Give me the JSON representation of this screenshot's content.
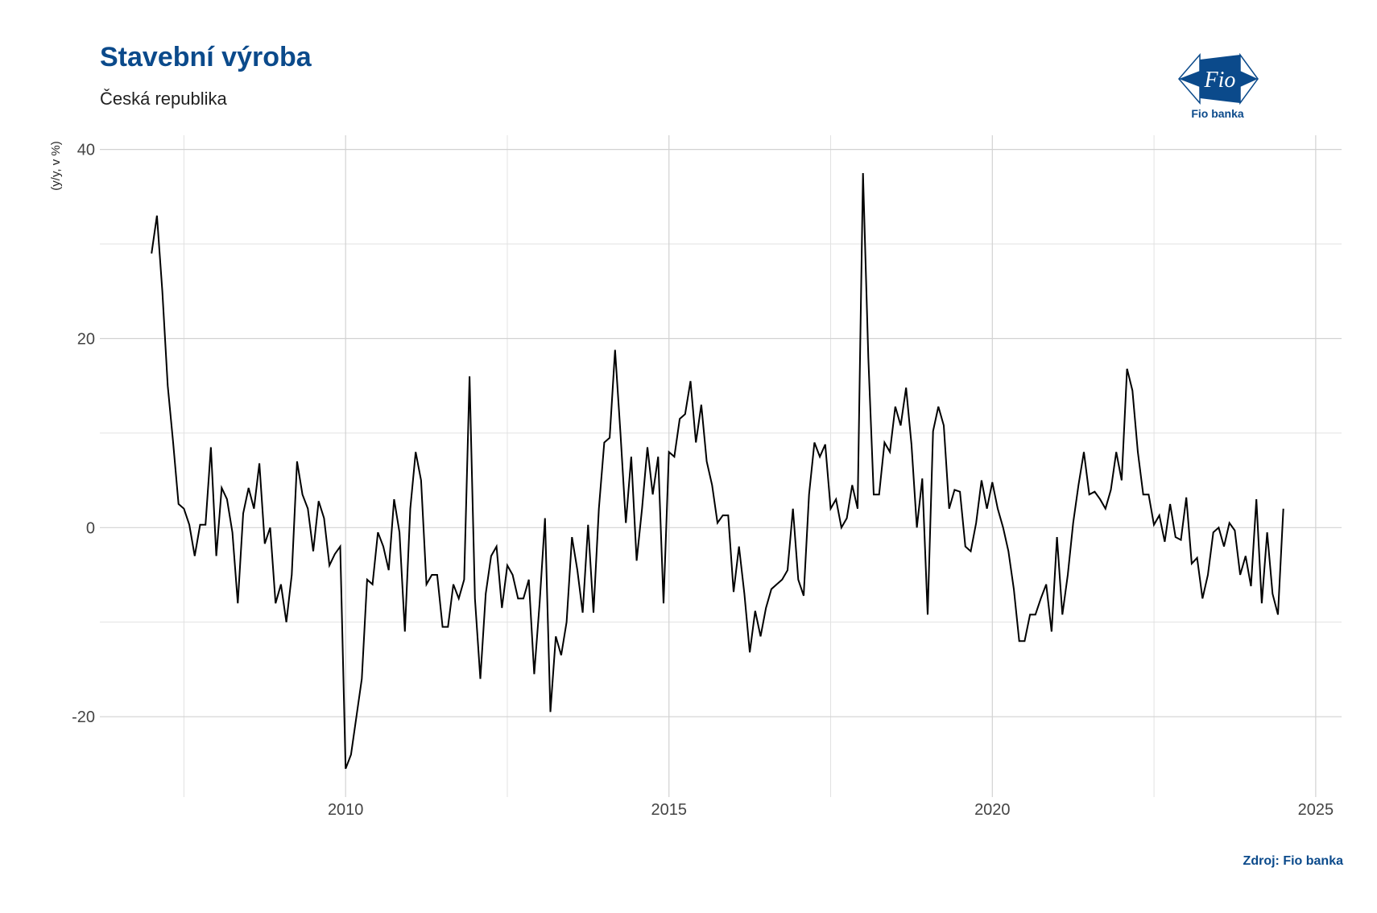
{
  "title": "Stavební výroba",
  "subtitle": "Česká republika",
  "source": "Zdroj: Fio banka",
  "logo": {
    "text": "Fio",
    "caption": "Fio banka",
    "color": "#0b4a8b"
  },
  "chart_data": {
    "type": "line",
    "title": "Stavební výroba",
    "subtitle": "Česká republika",
    "xlabel": "",
    "ylabel": "(y/y, v %)",
    "xlim": [
      2006.2,
      2025.4
    ],
    "ylim": [
      -28.5,
      41.5
    ],
    "x_ticks": [
      2010,
      2015,
      2020,
      2025
    ],
    "y_ticks": [
      -20,
      0,
      20,
      40
    ],
    "grid": true,
    "line_color": "#000000",
    "start": 2007.0,
    "step": 0.08333,
    "values": [
      29.0,
      33.0,
      25.0,
      15.0,
      9.0,
      2.5,
      2.0,
      0.3,
      -3.0,
      0.3,
      0.3,
      8.5,
      -3.0,
      4.2,
      3.0,
      -0.5,
      -8.0,
      1.5,
      4.2,
      2.0,
      6.8,
      -1.7,
      0.0,
      -8.0,
      -6.0,
      -10.0,
      -5.0,
      7.0,
      3.5,
      2.0,
      -2.5,
      2.8,
      1.0,
      -4.0,
      -2.8,
      -2.0,
      -25.5,
      -24.0,
      -20.0,
      -16.0,
      -5.5,
      -6.0,
      -0.5,
      -2.0,
      -4.5,
      3.0,
      -0.5,
      -11.0,
      2.0,
      8.0,
      5.0,
      -6.0,
      -5.0,
      -5.0,
      -10.5,
      -10.5,
      -6.0,
      -7.5,
      -5.5,
      16.0,
      -7.5,
      -16.0,
      -7.0,
      -3.0,
      -2.0,
      -8.5,
      -4.0,
      -5.0,
      -7.5,
      -7.5,
      -5.5,
      -15.5,
      -8.0,
      1.0,
      -19.5,
      -11.5,
      -13.5,
      -10.0,
      -1.0,
      -4.5,
      -9.0,
      0.3,
      -9.0,
      2.0,
      9.0,
      9.5,
      18.8,
      10.0,
      0.5,
      7.5,
      -3.5,
      2.0,
      8.5,
      3.5,
      7.5,
      -8.0,
      8.0,
      7.5,
      11.5,
      12.0,
      15.5,
      9.0,
      13.0,
      7.0,
      4.5,
      0.5,
      1.3,
      1.3,
      -6.8,
      -2.0,
      -7.0,
      -13.2,
      -8.8,
      -11.5,
      -8.5,
      -6.5,
      -6.0,
      -5.5,
      -4.5,
      2.0,
      -5.5,
      -7.2,
      3.5,
      9.0,
      7.5,
      8.8,
      2.0,
      3.0,
      0.0,
      1.0,
      4.5,
      2.0,
      37.5,
      18.0,
      3.5,
      3.5,
      9.0,
      8.0,
      12.8,
      10.8,
      14.8,
      8.8,
      0.0,
      5.2,
      -9.2,
      10.2,
      12.8,
      10.8,
      2.0,
      4.0,
      3.8,
      -2.0,
      -2.5,
      0.5,
      5.0,
      2.0,
      4.8,
      2.0,
      0.0,
      -2.5,
      -6.5,
      -12.0,
      -12.0,
      -9.2,
      -9.2,
      -7.5,
      -6.0,
      -11.0,
      -1.0,
      -9.2,
      -5.0,
      0.5,
      4.5,
      8.0,
      3.5,
      3.8,
      3.0,
      2.0,
      4.0,
      8.0,
      5.0,
      16.8,
      14.5,
      8.0,
      3.5,
      3.5,
      0.3,
      1.3,
      -1.5,
      2.5,
      -1.0,
      -1.3,
      3.2,
      -3.8,
      -3.2,
      -7.5,
      -5.0,
      -0.5,
      0.0,
      -2.0,
      0.5,
      -0.3,
      -5.0,
      -3.0,
      -6.2,
      3.0,
      -8.0,
      -0.5,
      -7.0,
      -9.2,
      2.0
    ]
  }
}
